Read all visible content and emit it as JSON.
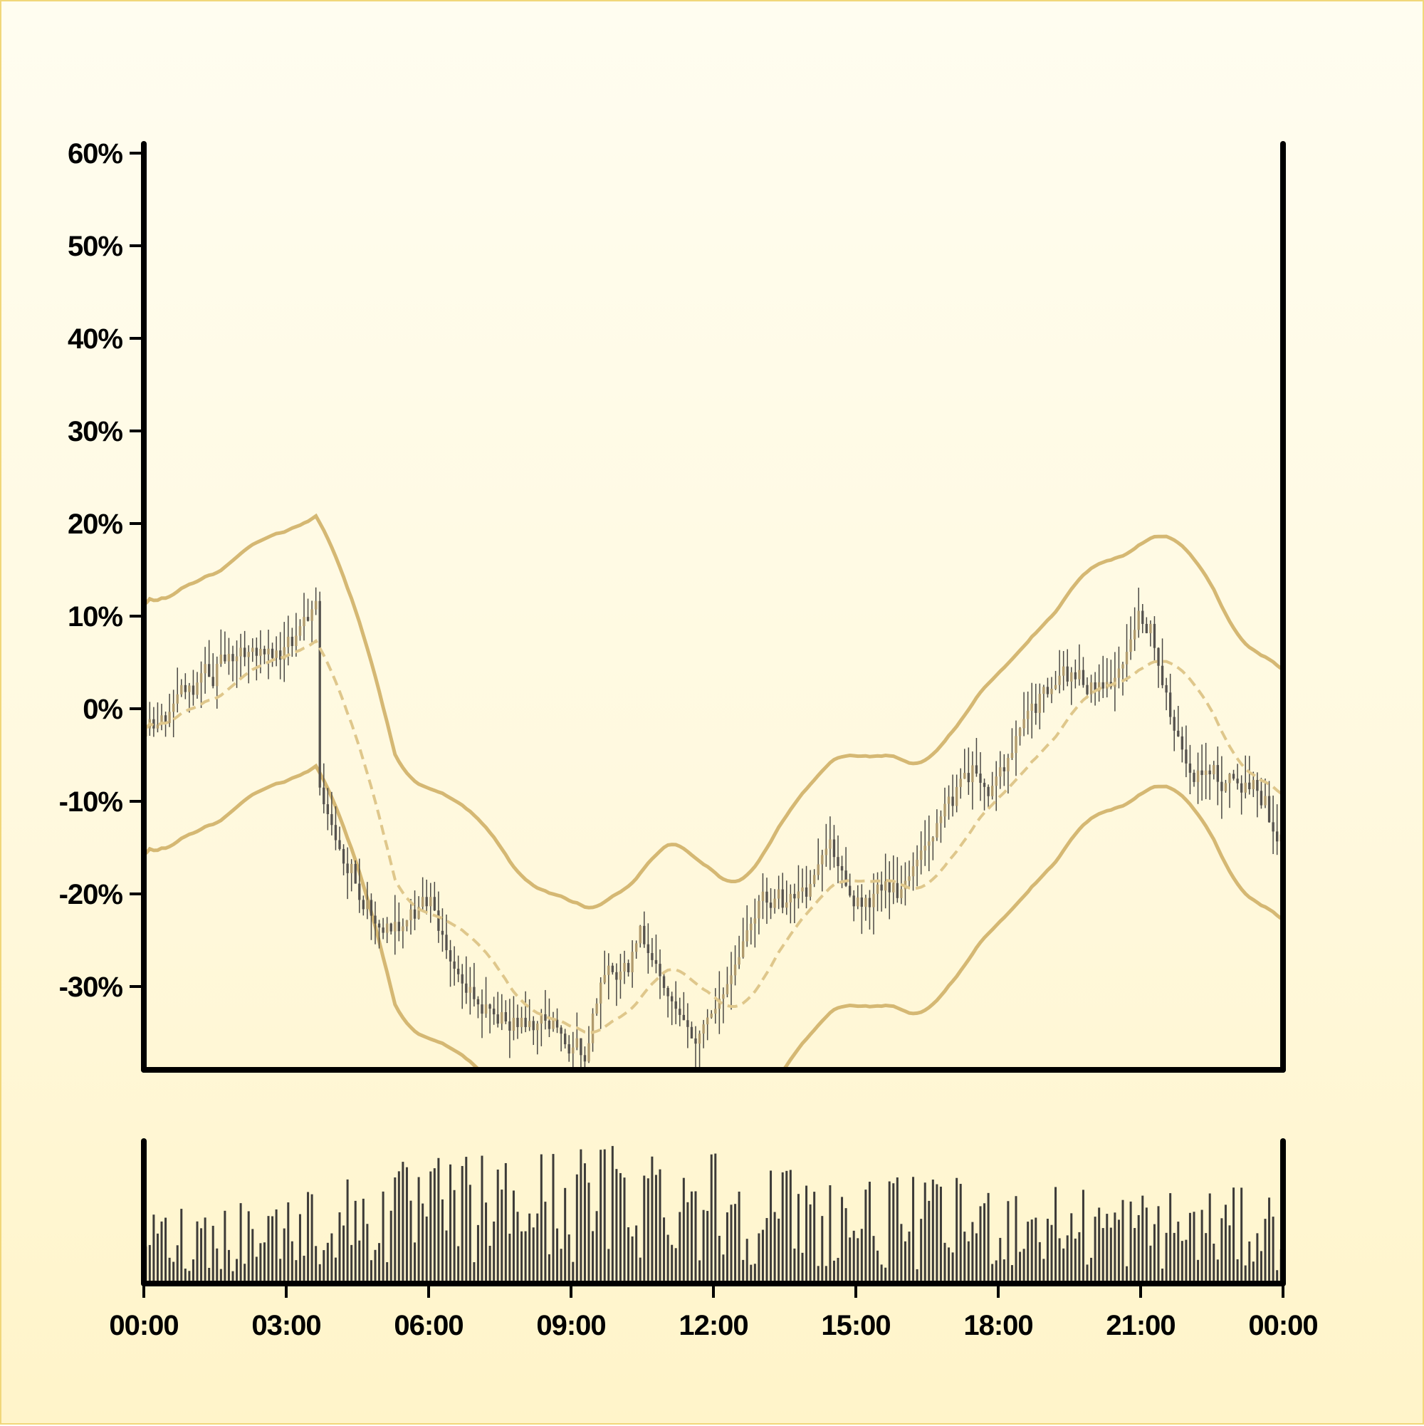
{
  "chart_data": [
    {
      "panel": "price",
      "type": "candlestick",
      "x_unit": "time (hh:mm)",
      "y_tick_labels": [
        "60%",
        "50%",
        "40%",
        "30%",
        "20%",
        "10%",
        "0%",
        "-10%",
        "-20%",
        "-30%"
      ],
      "y_ticks": [
        60,
        50,
        40,
        30,
        20,
        10,
        0,
        -10,
        -20,
        -30
      ],
      "ylim": [
        -39,
        61
      ],
      "xlim": [
        "00:00",
        "24:00"
      ],
      "candle_interval_minutes": 5,
      "anchors": [
        {
          "t": "00:00",
          "y": -3
        },
        {
          "t": "00:30",
          "y": -1
        },
        {
          "t": "01:00",
          "y": 2
        },
        {
          "t": "01:30",
          "y": 4
        },
        {
          "t": "02:00",
          "y": 6
        },
        {
          "t": "02:30",
          "y": 6
        },
        {
          "t": "03:00",
          "y": 7
        },
        {
          "t": "03:30",
          "y": 9
        },
        {
          "t": "03:40",
          "y": 12
        },
        {
          "t": "03:45",
          "y": -9
        },
        {
          "t": "04:15",
          "y": -17
        },
        {
          "t": "05:00",
          "y": -24
        },
        {
          "t": "05:30",
          "y": -23
        },
        {
          "t": "06:00",
          "y": -20
        },
        {
          "t": "06:30",
          "y": -27
        },
        {
          "t": "07:00",
          "y": -31
        },
        {
          "t": "07:30",
          "y": -33
        },
        {
          "t": "08:00",
          "y": -34
        },
        {
          "t": "08:30",
          "y": -34
        },
        {
          "t": "09:00",
          "y": -36
        },
        {
          "t": "09:20",
          "y": -38
        },
        {
          "t": "09:40",
          "y": -29
        },
        {
          "t": "10:00",
          "y": -29
        },
        {
          "t": "10:30",
          "y": -24
        },
        {
          "t": "10:50",
          "y": -28
        },
        {
          "t": "11:10",
          "y": -32
        },
        {
          "t": "11:40",
          "y": -36
        },
        {
          "t": "12:00",
          "y": -33
        },
        {
          "t": "12:30",
          "y": -28
        },
        {
          "t": "13:00",
          "y": -21
        },
        {
          "t": "13:30",
          "y": -21
        },
        {
          "t": "14:00",
          "y": -19
        },
        {
          "t": "14:30",
          "y": -15
        },
        {
          "t": "15:00",
          "y": -21
        },
        {
          "t": "15:30",
          "y": -20
        },
        {
          "t": "16:00",
          "y": -20
        },
        {
          "t": "16:30",
          "y": -15
        },
        {
          "t": "17:00",
          "y": -10
        },
        {
          "t": "17:30",
          "y": -6
        },
        {
          "t": "17:50",
          "y": -9
        },
        {
          "t": "18:10",
          "y": -7
        },
        {
          "t": "18:30",
          "y": -2
        },
        {
          "t": "19:00",
          "y": 2
        },
        {
          "t": "19:30",
          "y": 3
        },
        {
          "t": "20:00",
          "y": 3
        },
        {
          "t": "20:30",
          "y": 2
        },
        {
          "t": "21:00",
          "y": 10
        },
        {
          "t": "21:15",
          "y": 8
        },
        {
          "t": "21:45",
          "y": -2
        },
        {
          "t": "22:00",
          "y": -6
        },
        {
          "t": "22:30",
          "y": -7
        },
        {
          "t": "23:00",
          "y": -8
        },
        {
          "t": "23:30",
          "y": -9
        },
        {
          "t": "23:55",
          "y": -14
        }
      ],
      "moving_average_period": 20,
      "band_width": [
        12,
        13
      ],
      "series_colors": {
        "up_candle": "#b09a6c",
        "down_candle": "#55524e",
        "moving_average": "#dfc78b",
        "bands": "#d5b873"
      }
    },
    {
      "panel": "volume",
      "type": "bar",
      "x_tick_labels": [
        "00:00",
        "03:00",
        "06:00",
        "09:00",
        "12:00",
        "15:00",
        "18:00",
        "21:00",
        "00:00"
      ],
      "x_ticks_hours": [
        0,
        3,
        6,
        9,
        12,
        15,
        18,
        21,
        24
      ],
      "bar_interval_minutes": 5,
      "activity_profile": [
        {
          "t": "00:00",
          "level": 0.35
        },
        {
          "t": "03:00",
          "level": 0.45
        },
        {
          "t": "06:00",
          "level": 0.6
        },
        {
          "t": "09:00",
          "level": 0.65
        },
        {
          "t": "11:00",
          "level": 0.75
        },
        {
          "t": "13:00",
          "level": 0.6
        },
        {
          "t": "15:00",
          "level": 0.5
        },
        {
          "t": "18:00",
          "level": 0.5
        },
        {
          "t": "21:00",
          "level": 0.45
        },
        {
          "t": "24:00",
          "level": 0.45
        }
      ],
      "bar_color": "#3d3b38"
    }
  ]
}
